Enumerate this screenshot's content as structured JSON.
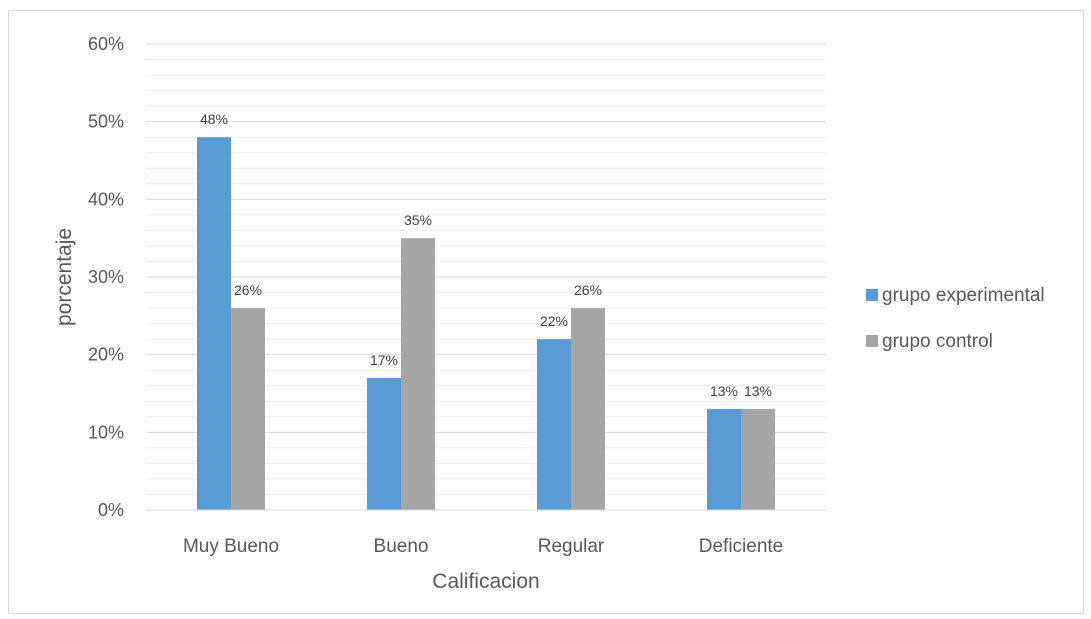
{
  "chart_data": {
    "type": "bar",
    "categories": [
      "Muy Bueno",
      "Bueno",
      "Regular",
      "Deficiente"
    ],
    "series": [
      {
        "name": "grupo experimental",
        "values": [
          48,
          17,
          22,
          13
        ],
        "labels": [
          "48%",
          "17%",
          "22%",
          "13%"
        ],
        "color": "#5b9bd5"
      },
      {
        "name": "grupo control",
        "values": [
          26,
          35,
          26,
          13
        ],
        "labels": [
          "26%",
          "35%",
          "26%",
          "13%"
        ],
        "color": "#a5a5a5"
      }
    ],
    "yticks": [
      "0%",
      "10%",
      "20%",
      "30%",
      "40%",
      "50%",
      "60%"
    ],
    "ylim": [
      0,
      60
    ],
    "xlabel": "Calificacion",
    "ylabel": "porcentaje",
    "legend_position": "right",
    "grid": true
  }
}
